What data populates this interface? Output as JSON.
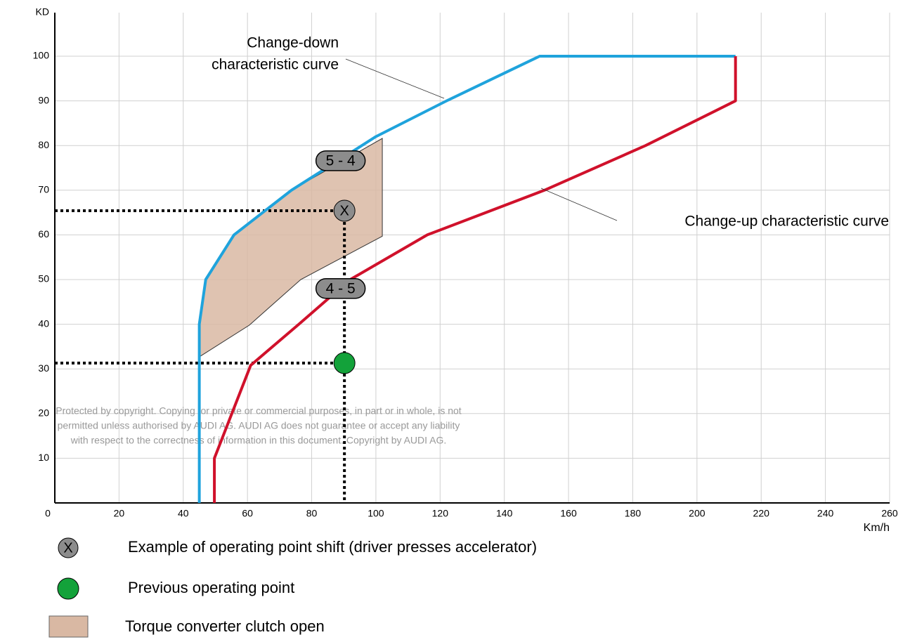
{
  "chart_data": {
    "type": "line",
    "xlabel": "Km/h",
    "ylabel": "KD",
    "xlim": [
      0,
      260
    ],
    "xticks": [
      0,
      20,
      40,
      60,
      80,
      100,
      120,
      140,
      160,
      180,
      200,
      220,
      240,
      260
    ],
    "ylim": [
      0,
      100
    ],
    "yticks": [
      10,
      20,
      30,
      40,
      50,
      60,
      70,
      80,
      90,
      100
    ],
    "grid": true,
    "series": [
      {
        "color": "#1fa3dc",
        "x": [
          45,
          45,
          47,
          55.8,
          73.7,
          100,
          122,
          151,
          212
        ],
        "values": [
          0,
          40,
          50,
          60,
          70,
          82,
          90,
          100,
          100
        ]
      },
      {
        "color": "#d0112b",
        "x": [
          49.7,
          49.7,
          61,
          76,
          92,
          116,
          152.5,
          184,
          212,
          212
        ],
        "values": [
          0,
          10,
          30.8,
          40,
          50,
          60,
          70,
          80,
          90,
          100
        ]
      }
    ],
    "region": {
      "color": "#d9b8a3",
      "x": [
        45,
        60.6,
        76.6,
        102,
        102,
        73.7,
        55.8,
        47,
        45
      ],
      "values": [
        32.7,
        39.8,
        50,
        59.7,
        81.6,
        70,
        60,
        50,
        40
      ]
    },
    "points": [
      {
        "x": 90.2,
        "y": 65.4,
        "color": "#8c8c8c",
        "symbol": "X"
      },
      {
        "x": 90.2,
        "y": 31.3,
        "color": "#13a23a"
      }
    ],
    "shift_labels": [
      {
        "text": "5 - 4",
        "x": 89,
        "y": 76.6
      },
      {
        "text": "4 - 5",
        "x": 89,
        "y": 48
      }
    ],
    "annotations": [
      {
        "lines": [
          "Change-down",
          "characteristic curve"
        ]
      },
      {
        "lines": [
          "Change-up characteristic curve"
        ]
      }
    ],
    "watermark": [
      "Protected by copyright. Copying for private or commercial purposes, in part or in whole, is not",
      "permitted unless authorised by AUDI AG. AUDI AG does not guarantee or accept any liability",
      "with respect to the correctness of information in this document. Copyright by AUDI AG."
    ],
    "legend": [
      "Example of operating point shift (driver presses accelerator)",
      "Previous operating point",
      "Torque converter clutch open"
    ]
  }
}
